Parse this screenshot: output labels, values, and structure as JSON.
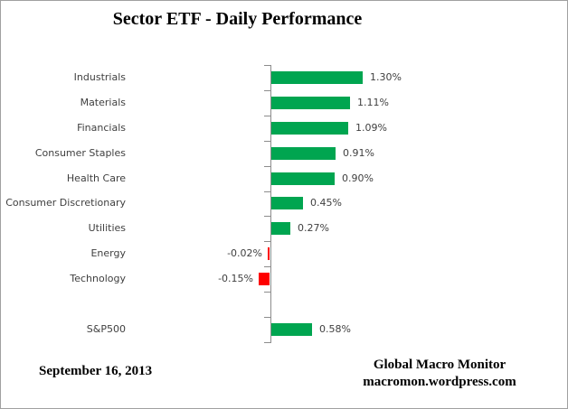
{
  "title": "Sector ETF - Daily Performance",
  "footer": {
    "date": "September 16, 2013",
    "source_line1": "Global Macro Monitor",
    "source_line2": "macromon.wordpress.com"
  },
  "chart_data": {
    "type": "bar",
    "orientation": "horizontal",
    "title": "Sector ETF - Daily Performance",
    "categories": [
      "Industrials",
      "Materials",
      "Financials",
      "Consumer Staples",
      "Health Care",
      "Consumer Discretionary",
      "Utilities",
      "Energy",
      "Technology",
      "",
      "S&P500"
    ],
    "values": [
      1.3,
      1.11,
      1.09,
      0.91,
      0.9,
      0.45,
      0.27,
      -0.02,
      -0.15,
      null,
      0.58
    ],
    "value_labels": [
      "1.30%",
      "1.11%",
      "1.09%",
      "0.91%",
      "0.90%",
      "0.45%",
      "0.27%",
      "-0.02%",
      "-0.15%",
      "",
      "0.58%"
    ],
    "xlim": [
      -2,
      2
    ],
    "grid": false,
    "legend": false,
    "xlabel": "",
    "ylabel": "",
    "positive_color": "#00A550",
    "negative_color": "#FE0000",
    "axis_color": "#8C8C8C",
    "text_color": "#3F3F3F"
  }
}
